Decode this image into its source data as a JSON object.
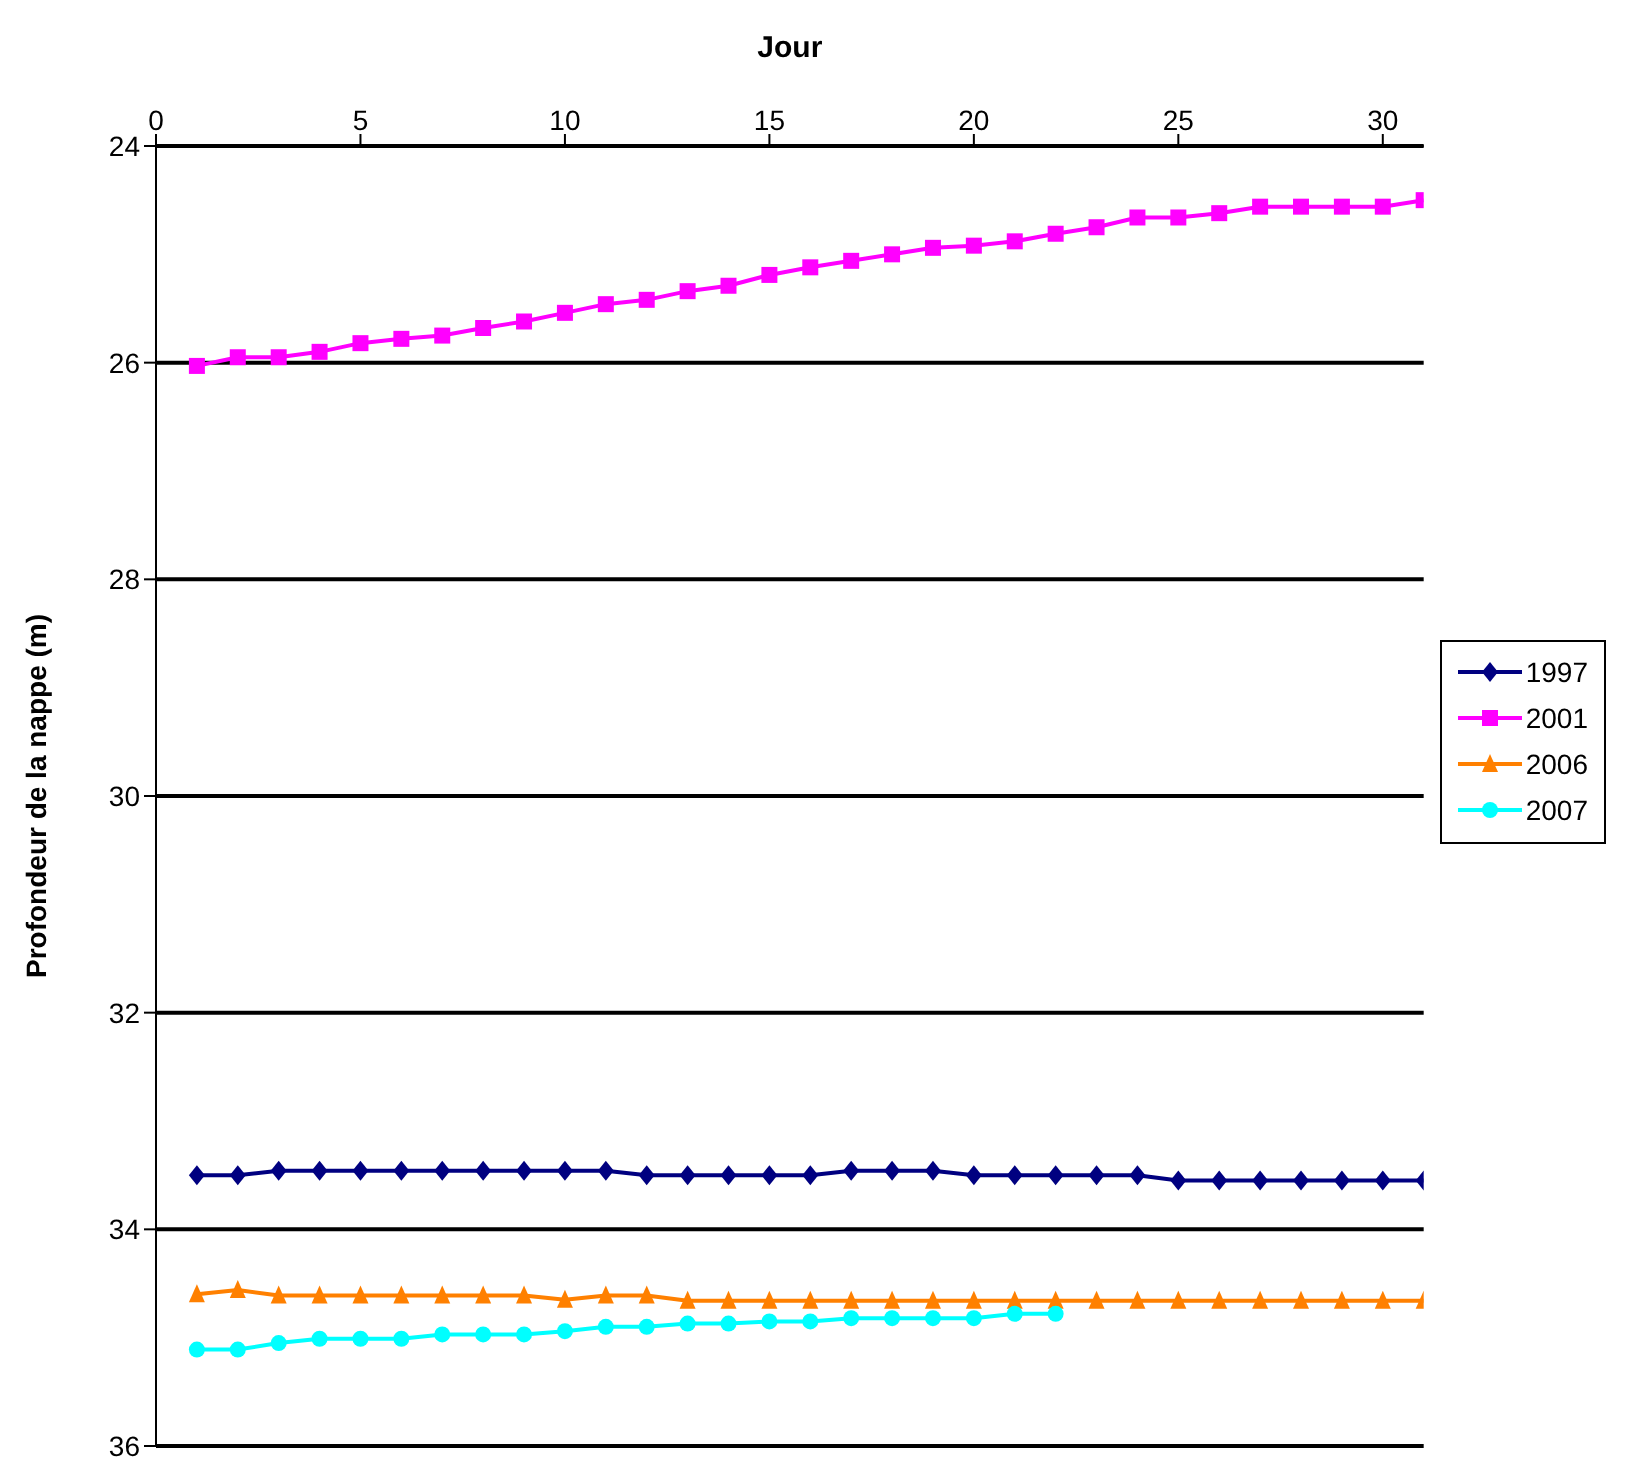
{
  "chart_data": {
    "type": "line",
    "xlabel": "Jour",
    "ylabel": "Profondeur de la nappe (m)",
    "xlim": [
      0,
      31
    ],
    "xticks": [
      0,
      5,
      10,
      15,
      20,
      25,
      30
    ],
    "ylim": [
      36,
      24
    ],
    "yticks": [
      24,
      26,
      28,
      30,
      32,
      34,
      36
    ],
    "x": [
      1,
      2,
      3,
      4,
      5,
      6,
      7,
      8,
      9,
      10,
      11,
      12,
      13,
      14,
      15,
      16,
      17,
      18,
      19,
      20,
      21,
      22,
      23,
      24,
      25,
      26,
      27,
      28,
      29,
      30,
      31
    ],
    "grid": "y",
    "legend": "right",
    "series": [
      {
        "name": "1997",
        "color": "#000080",
        "marker": "diamond",
        "values": [
          33.5,
          33.5,
          33.46,
          33.46,
          33.46,
          33.46,
          33.46,
          33.46,
          33.46,
          33.46,
          33.46,
          33.5,
          33.5,
          33.5,
          33.5,
          33.5,
          33.46,
          33.46,
          33.46,
          33.5,
          33.5,
          33.5,
          33.5,
          33.5,
          33.55,
          33.55,
          33.55,
          33.55,
          33.55,
          33.55,
          33.55
        ]
      },
      {
        "name": "2001",
        "color": "#ff00ff",
        "marker": "square",
        "values": [
          26.03,
          25.95,
          25.95,
          25.9,
          25.82,
          25.78,
          25.75,
          25.68,
          25.62,
          25.54,
          25.46,
          25.42,
          25.34,
          25.29,
          25.19,
          25.12,
          25.06,
          25.0,
          24.94,
          24.92,
          24.88,
          24.81,
          24.75,
          24.66,
          24.66,
          24.62,
          24.56,
          24.56,
          24.56,
          24.56,
          24.5
        ]
      },
      {
        "name": "2006",
        "color": "#ff8000",
        "marker": "triangle",
        "values": [
          34.6,
          34.56,
          34.61,
          34.61,
          34.61,
          34.61,
          34.61,
          34.61,
          34.61,
          34.65,
          34.61,
          34.61,
          34.66,
          34.66,
          34.66,
          34.66,
          34.66,
          34.66,
          34.66,
          34.66,
          34.66,
          34.66,
          34.66,
          34.66,
          34.66,
          34.66,
          34.66,
          34.66,
          34.66,
          34.66,
          34.66
        ]
      },
      {
        "name": "2007",
        "color": "#00ffff",
        "marker": "circle",
        "values": [
          35.11,
          35.11,
          35.05,
          35.01,
          35.01,
          35.01,
          34.97,
          34.97,
          34.97,
          34.94,
          34.9,
          34.9,
          34.87,
          34.87,
          34.85,
          34.85,
          34.82,
          34.82,
          34.82,
          34.82,
          34.78,
          34.78,
          null,
          null,
          null,
          null,
          null,
          null,
          null,
          null,
          null
        ]
      }
    ]
  }
}
